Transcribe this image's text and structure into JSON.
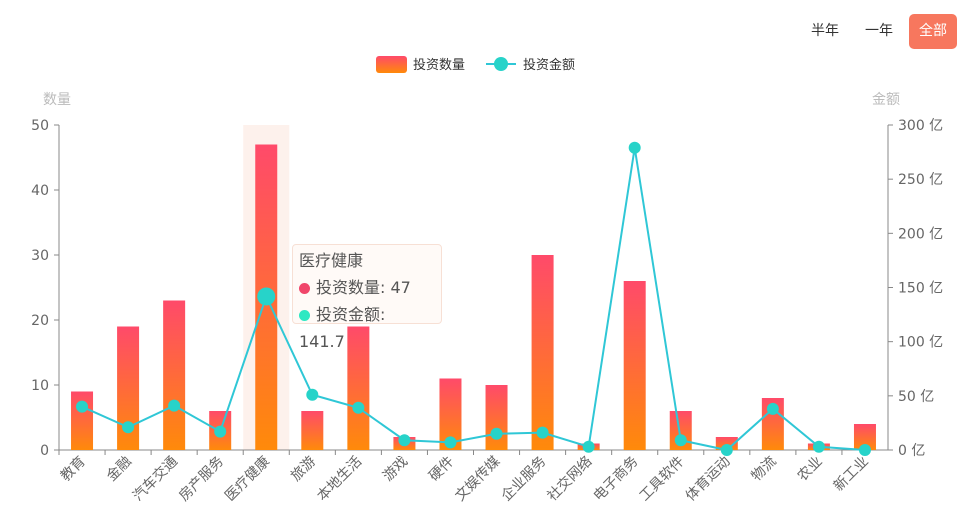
{
  "range_tabs": [
    {
      "label": "半年",
      "active": false
    },
    {
      "label": "一年",
      "active": false
    },
    {
      "label": "全部",
      "active": true
    }
  ],
  "tooltip": {
    "title": "医疗健康",
    "rows": [
      {
        "name": "投资数量",
        "value": "47",
        "color": "#f0466a"
      },
      {
        "name": "投资金额",
        "value": "141.7",
        "color": "#2ee8c2"
      }
    ]
  },
  "chart_data": {
    "type": "bar",
    "categories": [
      "教育",
      "金融",
      "汽车交通",
      "房产服务",
      "医疗健康",
      "旅游",
      "本地生活",
      "游戏",
      "硬件",
      "文娱传媒",
      "企业服务",
      "社交网络",
      "电子商务",
      "工具软件",
      "体育运动",
      "物流",
      "农业",
      "新工业"
    ],
    "series": [
      {
        "name": "投资数量",
        "type": "bar",
        "axis": "left",
        "values": [
          9,
          19,
          23,
          6,
          47,
          6,
          19,
          2,
          11,
          10,
          30,
          1,
          26,
          6,
          2,
          8,
          1,
          4
        ],
        "color_top": "#ff4a6a",
        "color_bottom": "#ff8a0a"
      },
      {
        "name": "投资金额",
        "type": "line",
        "axis": "right",
        "values": [
          40,
          21,
          41,
          17,
          141.7,
          51,
          39,
          9,
          7,
          15,
          16,
          3,
          279,
          9,
          0,
          38,
          3,
          0
        ],
        "color": "#2fc7d6",
        "marker_color": "#27d3c9"
      }
    ],
    "highlighted_category": "医疗健康",
    "y_left": {
      "label": "数量",
      "min": 0,
      "max": 50,
      "ticks": [
        0,
        10,
        20,
        30,
        40,
        50
      ]
    },
    "y_right": {
      "label": "金额",
      "min": 0,
      "max": 300,
      "ticks": [
        "0 亿",
        "50 亿",
        "100 亿",
        "150 亿",
        "200 亿",
        "250 亿",
        "300 亿"
      ]
    },
    "legend_position": "top-center",
    "grid": false
  }
}
